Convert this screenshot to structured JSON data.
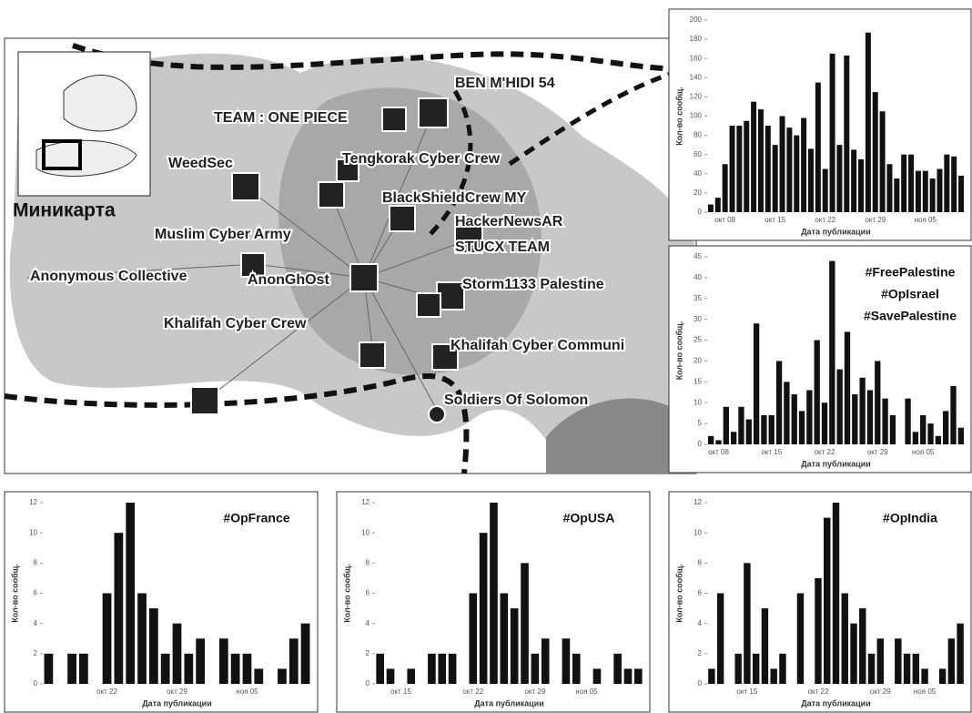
{
  "network": {
    "minimap_label": "Миникарта",
    "labels": [
      "BEN M'HIDI 54",
      "TEAM : ONE PIECE",
      "Tengkorak Cyber Crew",
      "WeedSec",
      "BlackShieldCrew MY",
      "HackerNewsAR",
      "Muslim Cyber Army",
      "STUCX TEAM",
      "Anonymous Collective",
      "AnonGhOst",
      "Storm1133 Palestine",
      "Khalifah Cyber Crew",
      "Khalifah Cyber Communi",
      "Soldiers Of Solomon"
    ]
  },
  "chart_data": [
    {
      "type": "bar",
      "color": "#111111",
      "ylabel": "Кол-во сообщ.",
      "xlabel": "Дата публикации",
      "categories": [
        null,
        null,
        "окт 08",
        null,
        null,
        null,
        null,
        null,
        null,
        "окт 15",
        null,
        null,
        null,
        null,
        null,
        null,
        "окт 22",
        null,
        null,
        null,
        null,
        null,
        null,
        "окт 29",
        null,
        null,
        null,
        null,
        null,
        null,
        "ноя 05",
        null,
        null,
        null,
        null,
        null
      ],
      "values": [
        8,
        15,
        50,
        90,
        90,
        95,
        115,
        107,
        90,
        70,
        100,
        88,
        80,
        98,
        66,
        135,
        45,
        165,
        70,
        163,
        65,
        55,
        187,
        125,
        105,
        50,
        35,
        60,
        60,
        43,
        43,
        35,
        45,
        60,
        58,
        38
      ],
      "ylim": [
        0,
        200
      ],
      "yticks": [
        0,
        20,
        40,
        60,
        80,
        100,
        120,
        140,
        160,
        180,
        200
      ]
    },
    {
      "type": "bar",
      "color": "#111111",
      "ylabel": "Кол-во сообщ.",
      "xlabel": "Дата публикации",
      "annotations": [
        "#FreePalestine",
        "#OpIsrael",
        "#SavePalestine"
      ],
      "categories": [
        null,
        "окт 08",
        null,
        null,
        null,
        null,
        null,
        null,
        "окт 15",
        null,
        null,
        null,
        null,
        null,
        null,
        "окт 22",
        null,
        null,
        null,
        null,
        null,
        null,
        "окт 29",
        null,
        null,
        null,
        null,
        null,
        "ноя 05",
        null,
        null,
        null,
        null,
        null
      ],
      "values": [
        2,
        1,
        9,
        3,
        9,
        6,
        29,
        7,
        7,
        20,
        15,
        12,
        8,
        13,
        25,
        10,
        44,
        18,
        27,
        12,
        16,
        13,
        20,
        11,
        7,
        null,
        11,
        3,
        7,
        5,
        2,
        8,
        14,
        4
      ],
      "ylim": [
        0,
        45
      ],
      "yticks": [
        0,
        5,
        10,
        15,
        20,
        25,
        30,
        35,
        40,
        45
      ]
    },
    {
      "type": "bar",
      "color": "#111111",
      "ylabel": "Кол-во сообщ.",
      "xlabel": "Дата публикации",
      "annotations": [
        "#OpFrance"
      ],
      "categories": [
        null,
        null,
        null,
        null,
        null,
        "окт 22",
        null,
        null,
        null,
        null,
        null,
        "окт 29",
        null,
        null,
        null,
        null,
        null,
        "ноя 05",
        null,
        null,
        null,
        null,
        null
      ],
      "values": [
        2,
        0,
        2,
        2,
        0,
        6,
        10,
        12,
        6,
        5,
        2,
        4,
        2,
        3,
        0,
        3,
        2,
        2,
        1,
        0,
        1,
        3,
        4
      ],
      "ylim": [
        0,
        12
      ],
      "yticks": [
        0,
        2,
        4,
        6,
        8,
        10,
        12
      ]
    },
    {
      "type": "bar",
      "color": "#111111",
      "ylabel": "Кол-во сообщ.",
      "xlabel": "Дата публикации",
      "annotations": [
        "#OpUSA"
      ],
      "categories": [
        null,
        null,
        "окт 15",
        null,
        null,
        null,
        null,
        null,
        null,
        "окт 22",
        null,
        null,
        null,
        null,
        null,
        "окт 29",
        null,
        null,
        null,
        null,
        "ноя 05",
        null,
        null,
        null,
        null,
        null
      ],
      "values": [
        2,
        1,
        0,
        1,
        0,
        2,
        2,
        2,
        0,
        6,
        10,
        12,
        6,
        5,
        8,
        2,
        3,
        0,
        3,
        2,
        0,
        1,
        0,
        2,
        1,
        1
      ],
      "ylim": [
        0,
        12
      ],
      "yticks": [
        0,
        2,
        4,
        6,
        8,
        10,
        12
      ]
    },
    {
      "type": "bar",
      "color": "#111111",
      "ylabel": "Кол-во сообщ.",
      "xlabel": "Дата публикации",
      "annotations": [
        "#OpIndia"
      ],
      "categories": [
        null,
        null,
        null,
        null,
        "окт 15",
        null,
        null,
        null,
        null,
        null,
        null,
        null,
        "окт 22",
        null,
        null,
        null,
        null,
        null,
        null,
        "окт 29",
        null,
        null,
        null,
        null,
        "ноя 05",
        null,
        null,
        null,
        null
      ],
      "values": [
        1,
        6,
        0,
        2,
        8,
        2,
        5,
        1,
        2,
        0,
        6,
        0,
        7,
        11,
        12,
        6,
        4,
        5,
        2,
        3,
        0,
        3,
        2,
        2,
        1,
        0,
        1,
        3,
        4
      ],
      "ylim": [
        0,
        12
      ],
      "yticks": [
        0,
        2,
        4,
        6,
        8,
        10,
        12
      ]
    }
  ]
}
